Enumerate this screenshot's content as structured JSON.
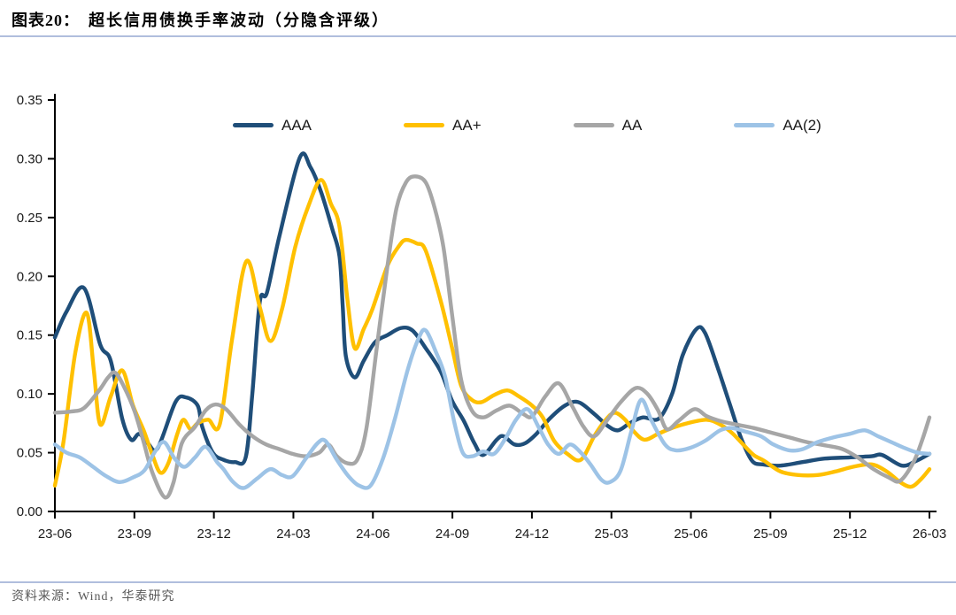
{
  "header": {
    "chart_label": "图表20：",
    "title": "超长信用债换手率波动（分隐含评级）"
  },
  "footer": {
    "source": "资料来源：Wind，华泰研究"
  },
  "chart_data": {
    "type": "line",
    "title": "超长信用债换手率波动（分隐含评级）",
    "grid": false,
    "legend_position": "top",
    "x_axis": {
      "tick_labels": [
        "23-06",
        "23-09",
        "23-12",
        "24-03",
        "24-06",
        "24-09",
        "24-12",
        "25-03",
        "25-06",
        "25-09",
        "25-12",
        "26-03"
      ],
      "months_per_tick": 3,
      "months_span": 33
    },
    "y_axis": {
      "min": 0,
      "max": 0.35,
      "step": 0.05,
      "tick_labels": [
        "0.00",
        "0.05",
        "0.10",
        "0.15",
        "0.20",
        "0.25",
        "0.30",
        "0.35"
      ]
    },
    "series": [
      {
        "name": "AAA",
        "color": "#1F4E79",
        "points": [
          [
            0,
            0.148
          ],
          [
            0.44,
            0.17
          ],
          [
            1.1,
            0.19
          ],
          [
            1.71,
            0.142
          ],
          [
            2.11,
            0.128
          ],
          [
            2.54,
            0.079
          ],
          [
            2.88,
            0.061
          ],
          [
            3.18,
            0.066
          ],
          [
            3.51,
            0.058
          ],
          [
            3.88,
            0.054
          ],
          [
            4.55,
            0.093
          ],
          [
            4.95,
            0.097
          ],
          [
            5.39,
            0.09
          ],
          [
            5.56,
            0.072
          ],
          [
            5.96,
            0.05
          ],
          [
            6.36,
            0.044
          ],
          [
            6.79,
            0.042
          ],
          [
            7.2,
            0.046
          ],
          [
            7.45,
            0.1
          ],
          [
            7.73,
            0.178
          ],
          [
            8.0,
            0.186
          ],
          [
            8.47,
            0.234
          ],
          [
            9.24,
            0.301
          ],
          [
            9.64,
            0.293
          ],
          [
            10.04,
            0.272
          ],
          [
            10.47,
            0.24
          ],
          [
            10.74,
            0.217
          ],
          [
            10.86,
            0.175
          ],
          [
            10.98,
            0.132
          ],
          [
            11.31,
            0.114
          ],
          [
            11.65,
            0.128
          ],
          [
            12.08,
            0.144
          ],
          [
            12.55,
            0.15
          ],
          [
            13.05,
            0.156
          ],
          [
            13.49,
            0.154
          ],
          [
            13.99,
            0.139
          ],
          [
            14.56,
            0.119
          ],
          [
            14.99,
            0.094
          ],
          [
            15.43,
            0.077
          ],
          [
            15.83,
            0.058
          ],
          [
            16.16,
            0.048
          ],
          [
            16.67,
            0.061
          ],
          [
            16.93,
            0.064
          ],
          [
            17.34,
            0.057
          ],
          [
            17.74,
            0.058
          ],
          [
            18.17,
            0.066
          ],
          [
            18.67,
            0.079
          ],
          [
            19.24,
            0.09
          ],
          [
            19.75,
            0.093
          ],
          [
            20.35,
            0.083
          ],
          [
            20.85,
            0.073
          ],
          [
            21.25,
            0.069
          ],
          [
            21.69,
            0.075
          ],
          [
            22.19,
            0.08
          ],
          [
            22.79,
            0.079
          ],
          [
            23.29,
            0.1
          ],
          [
            23.69,
            0.133
          ],
          [
            24.2,
            0.155
          ],
          [
            24.53,
            0.152
          ],
          [
            25.03,
            0.121
          ],
          [
            25.47,
            0.091
          ],
          [
            25.9,
            0.062
          ],
          [
            26.31,
            0.043
          ],
          [
            26.71,
            0.04
          ],
          [
            27.38,
            0.039
          ],
          [
            28.21,
            0.042
          ],
          [
            29.05,
            0.045
          ],
          [
            29.99,
            0.046
          ],
          [
            30.82,
            0.047
          ],
          [
            31.22,
            0.048
          ],
          [
            31.96,
            0.039
          ],
          [
            32.5,
            0.043
          ],
          [
            33,
            0.049
          ]
        ]
      },
      {
        "name": "AA+",
        "color": "#FFC000",
        "points": [
          [
            0,
            0.022
          ],
          [
            0.33,
            0.06
          ],
          [
            0.77,
            0.135
          ],
          [
            1.2,
            0.169
          ],
          [
            1.47,
            0.12
          ],
          [
            1.71,
            0.074
          ],
          [
            2.11,
            0.098
          ],
          [
            2.54,
            0.12
          ],
          [
            2.95,
            0.09
          ],
          [
            3.35,
            0.069
          ],
          [
            3.68,
            0.048
          ],
          [
            3.98,
            0.033
          ],
          [
            4.28,
            0.041
          ],
          [
            4.62,
            0.066
          ],
          [
            4.85,
            0.078
          ],
          [
            5.12,
            0.07
          ],
          [
            5.39,
            0.075
          ],
          [
            5.79,
            0.078
          ],
          [
            6.22,
            0.074
          ],
          [
            6.69,
            0.147
          ],
          [
            7.23,
            0.213
          ],
          [
            7.73,
            0.174
          ],
          [
            8.13,
            0.145
          ],
          [
            8.57,
            0.172
          ],
          [
            9.07,
            0.225
          ],
          [
            9.57,
            0.26
          ],
          [
            10.04,
            0.282
          ],
          [
            10.41,
            0.262
          ],
          [
            10.74,
            0.242
          ],
          [
            11.04,
            0.18
          ],
          [
            11.31,
            0.139
          ],
          [
            11.65,
            0.155
          ],
          [
            11.98,
            0.172
          ],
          [
            12.55,
            0.209
          ],
          [
            12.99,
            0.226
          ],
          [
            13.25,
            0.231
          ],
          [
            13.65,
            0.228
          ],
          [
            13.99,
            0.222
          ],
          [
            14.56,
            0.179
          ],
          [
            14.99,
            0.139
          ],
          [
            15.33,
            0.107
          ],
          [
            15.73,
            0.095
          ],
          [
            16.1,
            0.093
          ],
          [
            16.57,
            0.099
          ],
          [
            17.07,
            0.103
          ],
          [
            17.5,
            0.098
          ],
          [
            18.01,
            0.09
          ],
          [
            18.41,
            0.08
          ],
          [
            18.84,
            0.06
          ],
          [
            19.34,
            0.049
          ],
          [
            19.85,
            0.044
          ],
          [
            20.35,
            0.064
          ],
          [
            20.75,
            0.077
          ],
          [
            21.12,
            0.084
          ],
          [
            21.52,
            0.078
          ],
          [
            21.85,
            0.068
          ],
          [
            22.25,
            0.061
          ],
          [
            22.76,
            0.066
          ],
          [
            23.29,
            0.071
          ],
          [
            23.86,
            0.075
          ],
          [
            24.6,
            0.078
          ],
          [
            25.1,
            0.074
          ],
          [
            25.54,
            0.067
          ],
          [
            25.97,
            0.057
          ],
          [
            26.37,
            0.048
          ],
          [
            26.77,
            0.043
          ],
          [
            27.38,
            0.034
          ],
          [
            28.05,
            0.031
          ],
          [
            28.78,
            0.031
          ],
          [
            29.45,
            0.034
          ],
          [
            30.12,
            0.038
          ],
          [
            30.82,
            0.04
          ],
          [
            31.39,
            0.034
          ],
          [
            31.89,
            0.025
          ],
          [
            32.3,
            0.021
          ],
          [
            32.66,
            0.027
          ],
          [
            33,
            0.036
          ]
        ]
      },
      {
        "name": "AA",
        "color": "#A6A6A6",
        "points": [
          [
            0,
            0.084
          ],
          [
            0.6,
            0.085
          ],
          [
            1.1,
            0.088
          ],
          [
            1.67,
            0.103
          ],
          [
            2.01,
            0.114
          ],
          [
            2.28,
            0.118
          ],
          [
            2.61,
            0.106
          ],
          [
            3.01,
            0.085
          ],
          [
            3.35,
            0.059
          ],
          [
            3.68,
            0.033
          ],
          [
            4.15,
            0.012
          ],
          [
            4.48,
            0.025
          ],
          [
            4.79,
            0.058
          ],
          [
            5.29,
            0.072
          ],
          [
            5.69,
            0.086
          ],
          [
            6.06,
            0.091
          ],
          [
            6.46,
            0.087
          ],
          [
            6.96,
            0.074
          ],
          [
            7.46,
            0.064
          ],
          [
            7.97,
            0.057
          ],
          [
            8.47,
            0.053
          ],
          [
            8.97,
            0.049
          ],
          [
            9.47,
            0.047
          ],
          [
            9.97,
            0.05
          ],
          [
            10.31,
            0.057
          ],
          [
            10.64,
            0.047
          ],
          [
            11.04,
            0.041
          ],
          [
            11.41,
            0.044
          ],
          [
            11.75,
            0.07
          ],
          [
            12.15,
            0.14
          ],
          [
            12.55,
            0.209
          ],
          [
            12.89,
            0.258
          ],
          [
            13.25,
            0.28
          ],
          [
            13.59,
            0.285
          ],
          [
            13.99,
            0.28
          ],
          [
            14.32,
            0.259
          ],
          [
            14.66,
            0.225
          ],
          [
            14.99,
            0.167
          ],
          [
            15.33,
            0.112
          ],
          [
            15.73,
            0.086
          ],
          [
            16.16,
            0.08
          ],
          [
            16.67,
            0.086
          ],
          [
            17.17,
            0.09
          ],
          [
            17.67,
            0.083
          ],
          [
            18.01,
            0.081
          ],
          [
            18.51,
            0.098
          ],
          [
            19.01,
            0.109
          ],
          [
            19.51,
            0.09
          ],
          [
            19.95,
            0.072
          ],
          [
            20.35,
            0.064
          ],
          [
            20.85,
            0.078
          ],
          [
            21.35,
            0.093
          ],
          [
            21.92,
            0.105
          ],
          [
            22.36,
            0.1
          ],
          [
            22.76,
            0.086
          ],
          [
            23.09,
            0.07
          ],
          [
            23.53,
            0.077
          ],
          [
            24.13,
            0.087
          ],
          [
            24.6,
            0.081
          ],
          [
            25.1,
            0.077
          ],
          [
            25.7,
            0.074
          ],
          [
            26.37,
            0.071
          ],
          [
            27.04,
            0.067
          ],
          [
            27.71,
            0.063
          ],
          [
            28.38,
            0.059
          ],
          [
            29.12,
            0.056
          ],
          [
            29.72,
            0.053
          ],
          [
            30.29,
            0.046
          ],
          [
            30.89,
            0.036
          ],
          [
            31.46,
            0.029
          ],
          [
            31.89,
            0.026
          ],
          [
            32.4,
            0.042
          ],
          [
            32.73,
            0.061
          ],
          [
            33,
            0.08
          ]
        ]
      },
      {
        "name": "AA(2)",
        "color": "#9DC3E6",
        "points": [
          [
            0,
            0.057
          ],
          [
            0.44,
            0.05
          ],
          [
            0.94,
            0.046
          ],
          [
            1.44,
            0.038
          ],
          [
            1.94,
            0.03
          ],
          [
            2.44,
            0.025
          ],
          [
            2.95,
            0.029
          ],
          [
            3.38,
            0.035
          ],
          [
            3.78,
            0.051
          ],
          [
            4.12,
            0.059
          ],
          [
            4.52,
            0.045
          ],
          [
            4.89,
            0.038
          ],
          [
            5.29,
            0.046
          ],
          [
            5.69,
            0.055
          ],
          [
            6.12,
            0.042
          ],
          [
            6.36,
            0.036
          ],
          [
            6.73,
            0.025
          ],
          [
            7.13,
            0.02
          ],
          [
            7.63,
            0.028
          ],
          [
            8.13,
            0.036
          ],
          [
            8.57,
            0.031
          ],
          [
            8.97,
            0.03
          ],
          [
            9.47,
            0.045
          ],
          [
            9.91,
            0.058
          ],
          [
            10.21,
            0.06
          ],
          [
            10.64,
            0.044
          ],
          [
            11.08,
            0.03
          ],
          [
            11.48,
            0.022
          ],
          [
            11.91,
            0.022
          ],
          [
            12.38,
            0.045
          ],
          [
            12.82,
            0.078
          ],
          [
            13.32,
            0.121
          ],
          [
            13.72,
            0.147
          ],
          [
            13.99,
            0.154
          ],
          [
            14.39,
            0.135
          ],
          [
            14.72,
            0.115
          ],
          [
            15.06,
            0.077
          ],
          [
            15.39,
            0.05
          ],
          [
            15.76,
            0.047
          ],
          [
            16.16,
            0.051
          ],
          [
            16.57,
            0.049
          ],
          [
            17.0,
            0.062
          ],
          [
            17.4,
            0.078
          ],
          [
            17.84,
            0.087
          ],
          [
            18.27,
            0.071
          ],
          [
            18.61,
            0.057
          ],
          [
            19.01,
            0.049
          ],
          [
            19.44,
            0.057
          ],
          [
            19.85,
            0.05
          ],
          [
            20.21,
            0.04
          ],
          [
            20.62,
            0.027
          ],
          [
            20.95,
            0.025
          ],
          [
            21.35,
            0.035
          ],
          [
            21.75,
            0.068
          ],
          [
            22.12,
            0.095
          ],
          [
            22.52,
            0.077
          ],
          [
            23.02,
            0.057
          ],
          [
            23.43,
            0.052
          ],
          [
            23.96,
            0.054
          ],
          [
            24.53,
            0.06
          ],
          [
            25.1,
            0.069
          ],
          [
            25.54,
            0.071
          ],
          [
            26.04,
            0.068
          ],
          [
            26.64,
            0.064
          ],
          [
            27.11,
            0.057
          ],
          [
            27.71,
            0.052
          ],
          [
            28.21,
            0.053
          ],
          [
            28.78,
            0.059
          ],
          [
            29.38,
            0.063
          ],
          [
            29.99,
            0.066
          ],
          [
            30.56,
            0.069
          ],
          [
            31.06,
            0.064
          ],
          [
            31.56,
            0.059
          ],
          [
            32.06,
            0.054
          ],
          [
            32.56,
            0.05
          ],
          [
            33,
            0.049
          ]
        ]
      }
    ]
  }
}
